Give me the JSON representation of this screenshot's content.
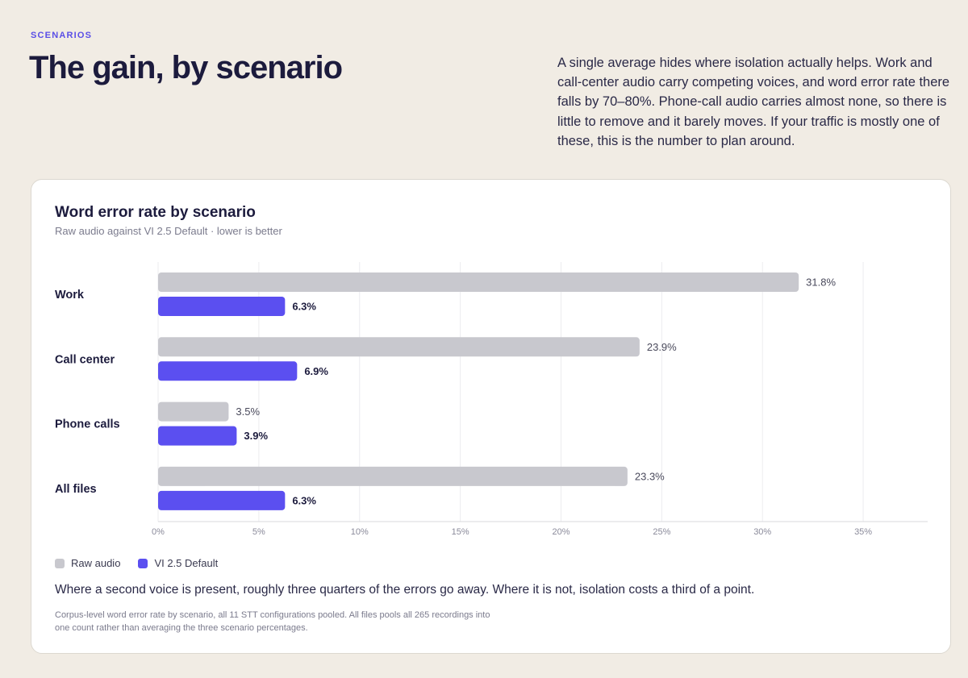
{
  "header": {
    "eyebrow": "SCENARIOS",
    "title": "The gain, by scenario",
    "intro": "A single average hides where isolation actually helps. Work and call-center audio carry competing voices, and word error rate there falls by 70–80%. Phone-call audio carries almost none, so there is little to remove and it barely moves. If your traffic is mostly one of these, this is the number to plan around."
  },
  "card": {
    "takeaway": "Where a second voice is present, roughly three quarters of the errors go away. Where it is not, isolation costs a third of a point.",
    "footnote": "Corpus-level word error rate by scenario, all 11 STT configurations pooled. All files pools all 265 recordings into one count rather than averaging the three scenario percentages."
  },
  "colors": {
    "raw": "#c8c8ce",
    "vi": "#5b4ff0",
    "accent": "#5a4ee6"
  },
  "chart_data": {
    "type": "bar",
    "orientation": "horizontal",
    "title": "Word error rate by scenario",
    "subtitle": "Raw audio against VI 2.5 Default · lower is better",
    "categories": [
      "Work",
      "Call center",
      "Phone calls",
      "All files"
    ],
    "series": [
      {
        "name": "Raw audio",
        "values": [
          31.8,
          23.9,
          3.5,
          23.3
        ],
        "labels": [
          "31.8%",
          "23.9%",
          "3.5%",
          "23.3%"
        ]
      },
      {
        "name": "VI 2.5 Default",
        "values": [
          6.3,
          6.9,
          3.9,
          6.3
        ],
        "labels": [
          "6.3%",
          "6.9%",
          "3.9%",
          "6.3%"
        ]
      }
    ],
    "xlim": [
      0,
      38.2
    ],
    "xticks": [
      0,
      5,
      10,
      15,
      20,
      25,
      30,
      35
    ],
    "xtick_labels": [
      "0%",
      "5%",
      "10%",
      "15%",
      "20%",
      "25%",
      "30%",
      "35%"
    ],
    "grid": "vertical",
    "legend": "bottom-left"
  }
}
